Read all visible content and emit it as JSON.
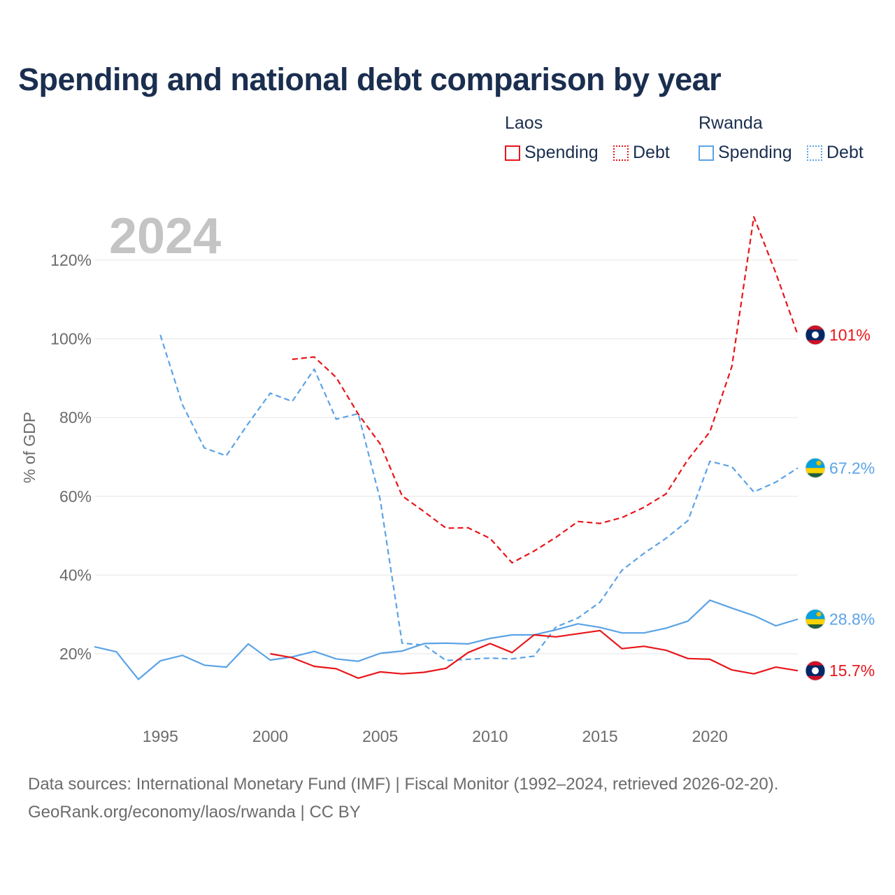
{
  "title": "Spending and national debt comparison by year",
  "legend": {
    "groups": [
      {
        "country": "Laos",
        "color": "#e8161b",
        "items": [
          "Spending",
          "Debt"
        ]
      },
      {
        "country": "Rwanda",
        "color": "#5ba3e6",
        "items": [
          "Spending",
          "Debt"
        ]
      }
    ]
  },
  "year_label": "2024",
  "chart_data": {
    "type": "line",
    "ylabel": "% of GDP",
    "xlabel": "",
    "xlim": [
      1992,
      2024
    ],
    "ylim": [
      10,
      130
    ],
    "yticks": [
      20,
      40,
      60,
      80,
      100,
      120
    ],
    "ytick_labels": [
      "20%",
      "40%",
      "60%",
      "80%",
      "100%",
      "120%"
    ],
    "xticks": [
      1995,
      2000,
      2005,
      2010,
      2015,
      2020
    ],
    "xtick_labels": [
      "1995",
      "2000",
      "2005",
      "2010",
      "2015",
      "2020"
    ],
    "series": [
      {
        "name": "Laos Spending",
        "country": "Laos",
        "metric": "Spending",
        "color": "#e8161b",
        "dash": "solid",
        "x": [
          2000,
          2001,
          2002,
          2003,
          2004,
          2005,
          2006,
          2007,
          2008,
          2009,
          2010,
          2011,
          2012,
          2013,
          2014,
          2015,
          2016,
          2017,
          2018,
          2019,
          2020,
          2021,
          2022,
          2023,
          2024
        ],
        "values": [
          20,
          19,
          16.8,
          16.2,
          13.8,
          15.4,
          14.9,
          15.3,
          16.3,
          20.3,
          22.6,
          20.3,
          24.8,
          24.3,
          25.1,
          25.9,
          21.3,
          21.9,
          20.9,
          18.8,
          18.6,
          15.9,
          14.9,
          16.6,
          15.7
        ],
        "end_label": "15.7%",
        "flag": "laos"
      },
      {
        "name": "Laos Debt",
        "country": "Laos",
        "metric": "Debt",
        "color": "#e8161b",
        "dash": "dashed",
        "x": [
          2001,
          2002,
          2003,
          2004,
          2005,
          2006,
          2007,
          2008,
          2009,
          2010,
          2011,
          2012,
          2013,
          2014,
          2015,
          2016,
          2017,
          2018,
          2019,
          2020,
          2021,
          2022,
          2023,
          2024
        ],
        "values": [
          94.8,
          95.4,
          90.2,
          80.9,
          73.3,
          60.1,
          56.1,
          51.9,
          52,
          49.3,
          43.1,
          46.1,
          49.6,
          53.6,
          53.1,
          54.6,
          57.2,
          60.6,
          69.3,
          76.4,
          93,
          131,
          116.7,
          101
        ],
        "end_label": "101%",
        "flag": "laos"
      },
      {
        "name": "Rwanda Spending",
        "country": "Rwanda",
        "metric": "Spending",
        "color": "#5ba3e6",
        "dash": "solid",
        "x": [
          1992,
          1993,
          1994,
          1995,
          1996,
          1997,
          1998,
          1999,
          2000,
          2001,
          2002,
          2003,
          2004,
          2005,
          2006,
          2007,
          2008,
          2009,
          2010,
          2011,
          2012,
          2013,
          2014,
          2015,
          2016,
          2017,
          2018,
          2019,
          2020,
          2021,
          2022,
          2023,
          2024
        ],
        "values": [
          21.8,
          20.5,
          13.5,
          18.2,
          19.6,
          17.1,
          16.6,
          22.5,
          18.4,
          19.2,
          20.6,
          18.7,
          18.1,
          20.1,
          20.7,
          22.6,
          22.7,
          22.5,
          23.9,
          24.8,
          24.8,
          26.1,
          27.6,
          26.7,
          25.3,
          25.3,
          26.5,
          28.3,
          33.6,
          31.6,
          29.7,
          27.1,
          28.8
        ],
        "end_label": "28.8%",
        "flag": "rwanda"
      },
      {
        "name": "Rwanda Debt",
        "country": "Rwanda",
        "metric": "Debt",
        "color": "#5ba3e6",
        "dash": "dashed",
        "x": [
          1995,
          1996,
          1997,
          1998,
          1999,
          2000,
          2001,
          2002,
          2003,
          2004,
          2005,
          2006,
          2007,
          2008,
          2009,
          2010,
          2011,
          2012,
          2013,
          2014,
          2015,
          2016,
          2017,
          2018,
          2019,
          2020,
          2021,
          2022,
          2023,
          2024
        ],
        "values": [
          101,
          83.3,
          72.3,
          70.3,
          78.5,
          86.2,
          84.1,
          92.3,
          79.6,
          81,
          59.2,
          22.7,
          22.2,
          18.3,
          18.6,
          18.9,
          18.7,
          19.4,
          26.8,
          29.1,
          33.1,
          41.2,
          45.5,
          49.3,
          53.8,
          68.9,
          67.5,
          61.1,
          63.6,
          67.2
        ],
        "end_label": "67.2%",
        "flag": "rwanda"
      }
    ]
  },
  "footer": {
    "line1": "Data sources: International Monetary Fund (IMF) | Fiscal Monitor (1992–2024, retrieved 2026-02-20).",
    "line2": "GeoRank.org/economy/laos/rwanda | CC BY"
  }
}
